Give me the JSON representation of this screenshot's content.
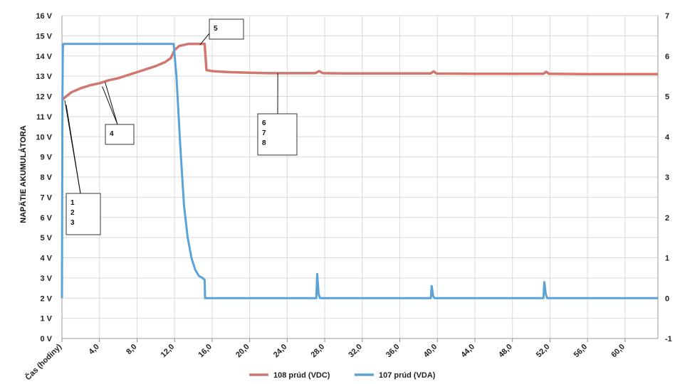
{
  "chart_data": {
    "type": "line",
    "title": "",
    "xlabel": "Čas (hodiny)",
    "ylabel": "NAPÄTIE AKUMULÁTORA",
    "xlim": [
      0,
      63.5
    ],
    "ylim": [
      0,
      16
    ],
    "y2lim": [
      -1,
      7
    ],
    "grid": true,
    "legend_position": "bottom-center",
    "x_ticks": [
      "Čas (hodiny)",
      "4,0",
      "8,0",
      "12,0",
      "16,0",
      "20,0",
      "24,0",
      "28,0",
      "32,0",
      "36,0",
      "40,0",
      "44,0",
      "48,0",
      "52,0",
      "56,0",
      "60,0"
    ],
    "y_ticks": [
      "0 V",
      "1 V",
      "2 V",
      "3 V",
      "4 V",
      "5 V",
      "6 V",
      "7 V",
      "8 V",
      "9 V",
      "10 V",
      "11 V",
      "12 V",
      "13 V",
      "14 V",
      "15 V",
      "16 V"
    ],
    "y2_ticks": [
      "-1",
      "0",
      "1",
      "2",
      "3",
      "4",
      "5",
      "6",
      "7"
    ],
    "series": [
      {
        "name": "108 prúd (VDC)",
        "color": "#d1776f",
        "axis": "left",
        "x": [
          0,
          0.2,
          1,
          2,
          3,
          4,
          5,
          6,
          7,
          8,
          9,
          10,
          11,
          11.6,
          12.0,
          12.5,
          13.5,
          14.5,
          15.2,
          15.4,
          16,
          17,
          18,
          20,
          22,
          24,
          27,
          27.4,
          27.8,
          30,
          34,
          38,
          39.3,
          39.6,
          39.9,
          44,
          48,
          51.3,
          51.6,
          51.9,
          56,
          60,
          63.5
        ],
        "y": [
          11.8,
          11.9,
          12.2,
          12.4,
          12.55,
          12.65,
          12.8,
          12.9,
          13.05,
          13.2,
          13.35,
          13.5,
          13.7,
          13.9,
          14.3,
          14.5,
          14.6,
          14.6,
          14.6,
          13.3,
          13.25,
          13.22,
          13.2,
          13.17,
          13.15,
          13.15,
          13.15,
          13.25,
          13.15,
          13.14,
          13.14,
          13.14,
          13.14,
          13.24,
          13.13,
          13.12,
          13.12,
          13.12,
          13.22,
          13.12,
          13.1,
          13.1,
          13.1
        ]
      },
      {
        "name": "107 prúd (VDA)",
        "color": "#5ba3d6",
        "axis": "right",
        "x": [
          0,
          0.05,
          0.1,
          0.15,
          2,
          4,
          6,
          8,
          10,
          11.9,
          12.2,
          12.6,
          13.0,
          13.4,
          13.8,
          14.2,
          14.6,
          15.0,
          15.2,
          15.25,
          20,
          27.1,
          27.2,
          27.35,
          27.5,
          30,
          39.3,
          39.4,
          39.55,
          39.7,
          45,
          51.3,
          51.4,
          51.55,
          51.7,
          58,
          63.5
        ],
        "y": [
          0,
          5.0,
          6.2,
          6.3,
          6.3,
          6.3,
          6.3,
          6.3,
          6.3,
          6.3,
          5.5,
          3.8,
          2.3,
          1.5,
          1.0,
          0.7,
          0.55,
          0.5,
          0.45,
          0,
          0,
          0,
          0.6,
          0.1,
          0,
          0,
          0,
          0.3,
          0.05,
          0,
          0,
          0,
          0.4,
          0.1,
          0,
          0,
          0
        ]
      }
    ],
    "annotations": [
      {
        "id": "a123",
        "lines": [
          "1",
          "2",
          "3"
        ],
        "target_x": 0.3,
        "target_y": 11.8
      },
      {
        "id": "a4",
        "lines": [
          "4"
        ],
        "target_x": 4.6,
        "target_y": 12.7
      },
      {
        "id": "a5",
        "lines": [
          "5"
        ],
        "target_x": 14.7,
        "target_y": 14.55
      },
      {
        "id": "a678",
        "lines": [
          "6",
          "7",
          "8"
        ],
        "target_x": 23.0,
        "target_y": 13.15
      }
    ]
  }
}
